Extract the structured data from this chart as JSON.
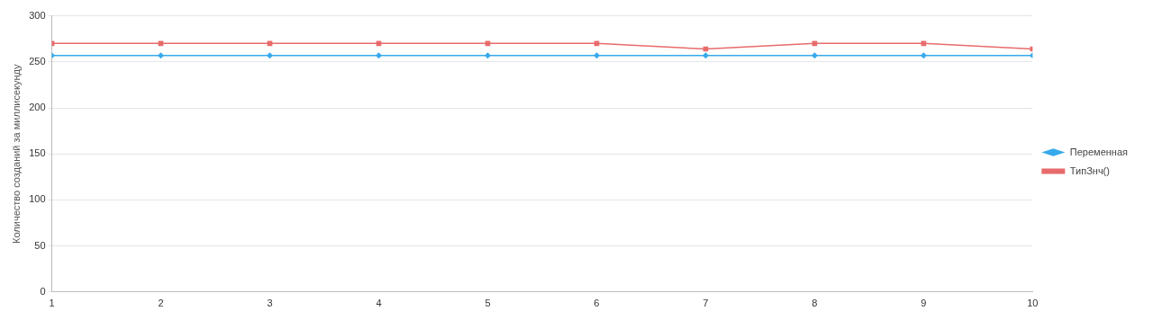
{
  "chart_data": {
    "type": "line",
    "ylabel": "Количество созданий за миллисекунду",
    "x": [
      1,
      2,
      3,
      4,
      5,
      6,
      7,
      8,
      9,
      10
    ],
    "xlim": [
      1,
      10
    ],
    "xticks": [
      1,
      2,
      3,
      4,
      5,
      6,
      7,
      8,
      9,
      10
    ],
    "ylim": [
      0,
      300
    ],
    "yticks": [
      0,
      50,
      100,
      150,
      200,
      250,
      300
    ],
    "grid": "y",
    "legend": "right",
    "series": [
      {
        "name": "Переменная",
        "color": "#36a9ec",
        "marker": "diamond",
        "values": [
          257,
          257,
          257,
          257,
          257,
          257,
          257,
          257,
          257,
          257
        ]
      },
      {
        "name": "ТипЗнч()",
        "color": "#e86b6b",
        "marker": "square",
        "values": [
          270,
          270,
          270,
          270,
          270,
          270,
          264,
          270,
          270,
          264
        ]
      }
    ]
  }
}
